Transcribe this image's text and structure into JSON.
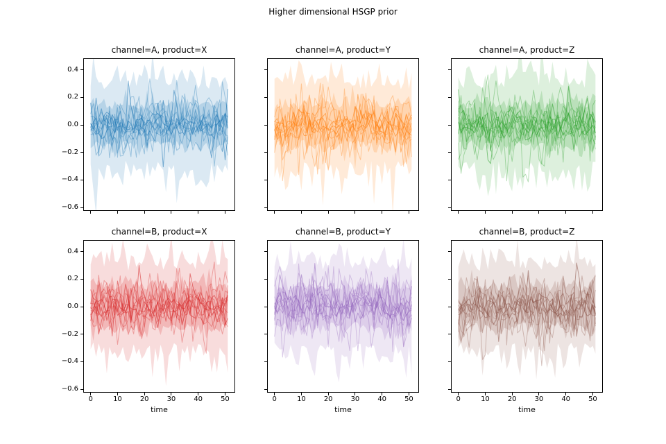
{
  "chart_data": {
    "type": "line",
    "title": "Higher dimensional HSGP prior",
    "xlabel": "time",
    "ylabel": "",
    "grid": false,
    "legend": false,
    "xlim": [
      -2.5,
      53.5
    ],
    "ylim": [
      -0.62,
      0.48
    ],
    "x_range_of_data": [
      0,
      51
    ],
    "xticks": [
      0,
      10,
      20,
      30,
      40,
      50
    ],
    "xtick_labels": [
      "0",
      "10",
      "20",
      "30",
      "40",
      "50"
    ],
    "yticks": [
      0.4,
      0.2,
      0.0,
      -0.2,
      -0.4,
      -0.6
    ],
    "ytick_labels": [
      "0.4",
      "0.2",
      "0.0",
      "−0.2",
      "−0.4",
      "−0.6"
    ],
    "n_sample_lines_approx": 10,
    "content": "Each panel shows ~10 noisy HSGP prior sample paths around 0 with translucent uncertainty bands of the same color, values mostly within ±0.3 with occasional spikes to about −0.55 and +0.45",
    "subplots": [
      {
        "row": 0,
        "col": 0,
        "channel": "A",
        "product": "X",
        "title": "channel=A, product=X",
        "color": "#1f77b4",
        "seed": 101
      },
      {
        "row": 0,
        "col": 1,
        "channel": "A",
        "product": "Y",
        "title": "channel=A, product=Y",
        "color": "#ff7f0e",
        "seed": 202
      },
      {
        "row": 0,
        "col": 2,
        "channel": "A",
        "product": "Z",
        "title": "channel=A, product=Z",
        "color": "#2ca02c",
        "seed": 303
      },
      {
        "row": 1,
        "col": 0,
        "channel": "B",
        "product": "X",
        "title": "channel=B, product=X",
        "color": "#d62728",
        "seed": 404
      },
      {
        "row": 1,
        "col": 1,
        "channel": "B",
        "product": "Y",
        "title": "channel=B, product=Y",
        "color": "#9467bd",
        "seed": 505
      },
      {
        "row": 1,
        "col": 2,
        "channel": "B",
        "product": "Z",
        "title": "channel=B, product=Z",
        "color": "#8c564b",
        "seed": 606
      }
    ]
  }
}
